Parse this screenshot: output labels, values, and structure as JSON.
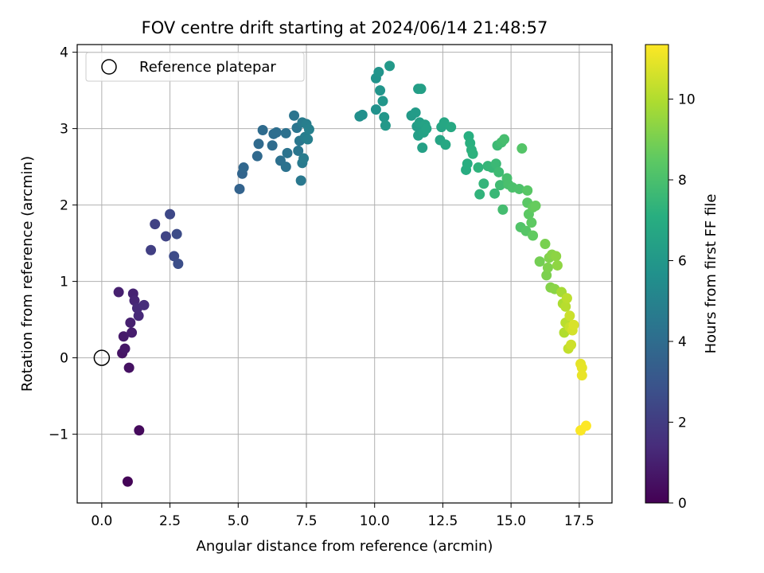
{
  "chart_data": {
    "type": "scatter",
    "title": "FOV centre drift starting at 2024/06/14 21:48:57",
    "xlabel": "Angular distance from reference (arcmin)",
    "ylabel": "Rotation from reference (arcmin)",
    "xlim": [
      -0.9,
      18.7
    ],
    "ylim": [
      -1.9,
      4.1
    ],
    "xticks": [
      0.0,
      2.5,
      5.0,
      7.5,
      10.0,
      12.5,
      15.0,
      17.5
    ],
    "xtick_labels": [
      "0.0",
      "2.5",
      "5.0",
      "7.5",
      "10.0",
      "12.5",
      "15.0",
      "17.5"
    ],
    "yticks": [
      -1,
      0,
      1,
      2,
      3,
      4
    ],
    "ytick_labels": [
      "−1",
      "0",
      "1",
      "2",
      "3",
      "4"
    ],
    "grid": true,
    "legend": {
      "placement": "upper-left",
      "entries": [
        "Reference platepar"
      ]
    },
    "reference_point": {
      "x": 0.0,
      "y": 0.0
    },
    "colorbar": {
      "label": "Hours from first FF file",
      "range": [
        0,
        11.35
      ],
      "ticks": [
        0,
        2,
        4,
        6,
        8,
        10
      ],
      "tick_labels": [
        "0",
        "2",
        "4",
        "6",
        "8",
        "10"
      ],
      "colormap": "viridis"
    },
    "series": [
      {
        "points": [
          [
            0.95,
            -1.62,
            0.1
          ],
          [
            1.37,
            -0.95,
            0.3
          ],
          [
            1.0,
            -0.13,
            0.5
          ],
          [
            0.75,
            0.06,
            0.6
          ],
          [
            0.85,
            0.12,
            0.7
          ],
          [
            0.8,
            0.28,
            0.8
          ],
          [
            1.1,
            0.33,
            0.9
          ],
          [
            1.05,
            0.46,
            1.0
          ],
          [
            0.62,
            0.86,
            1.0
          ],
          [
            1.15,
            0.84,
            1.1
          ],
          [
            1.2,
            0.75,
            1.2
          ],
          [
            1.35,
            0.55,
            1.3
          ],
          [
            1.3,
            0.65,
            1.35
          ],
          [
            1.55,
            0.69,
            1.45
          ],
          [
            1.8,
            1.41,
            2.1
          ],
          [
            1.95,
            1.75,
            2.2
          ],
          [
            2.35,
            1.59,
            2.3
          ],
          [
            2.5,
            1.88,
            2.45
          ],
          [
            2.65,
            1.33,
            2.55
          ],
          [
            2.75,
            1.62,
            2.6
          ],
          [
            2.8,
            1.23,
            2.7
          ],
          [
            5.05,
            2.21,
            3.6
          ],
          [
            5.15,
            2.41,
            3.7
          ],
          [
            5.2,
            2.49,
            3.75
          ],
          [
            5.7,
            2.64,
            3.85
          ],
          [
            5.75,
            2.8,
            3.9
          ],
          [
            5.9,
            2.98,
            3.95
          ],
          [
            6.25,
            2.78,
            4.0
          ],
          [
            6.3,
            2.93,
            4.05
          ],
          [
            6.4,
            2.95,
            4.1
          ],
          [
            6.55,
            2.58,
            4.15
          ],
          [
            6.75,
            2.94,
            4.2
          ],
          [
            6.75,
            2.5,
            4.25
          ],
          [
            6.8,
            2.68,
            4.3
          ],
          [
            7.05,
            3.17,
            4.35
          ],
          [
            7.15,
            3.01,
            4.4
          ],
          [
            7.2,
            2.71,
            4.45
          ],
          [
            7.25,
            2.84,
            4.5
          ],
          [
            7.3,
            2.32,
            4.55
          ],
          [
            7.35,
            2.55,
            4.6
          ],
          [
            7.35,
            3.08,
            4.65
          ],
          [
            7.4,
            2.61,
            4.7
          ],
          [
            7.45,
            2.89,
            4.75
          ],
          [
            7.5,
            3.06,
            4.8
          ],
          [
            7.55,
            2.86,
            4.85
          ],
          [
            7.6,
            2.99,
            4.9
          ],
          [
            9.45,
            3.16,
            5.6
          ],
          [
            9.55,
            3.18,
            5.65
          ],
          [
            10.05,
            3.25,
            5.7
          ],
          [
            10.05,
            3.66,
            5.75
          ],
          [
            10.15,
            3.74,
            5.8
          ],
          [
            10.2,
            3.5,
            5.85
          ],
          [
            10.3,
            3.36,
            5.9
          ],
          [
            10.35,
            3.15,
            5.95
          ],
          [
            10.4,
            3.04,
            6.0
          ],
          [
            10.55,
            3.82,
            6.05
          ],
          [
            11.35,
            3.17,
            6.1
          ],
          [
            11.5,
            3.21,
            6.15
          ],
          [
            11.55,
            3.03,
            6.2
          ],
          [
            11.6,
            3.52,
            6.25
          ],
          [
            11.6,
            2.91,
            6.3
          ],
          [
            11.65,
            3.08,
            6.35
          ],
          [
            11.7,
            3.52,
            6.35
          ],
          [
            11.75,
            2.75,
            6.4
          ],
          [
            11.8,
            2.95,
            6.45
          ],
          [
            11.85,
            3.05,
            6.5
          ],
          [
            11.9,
            3.0,
            6.55
          ],
          [
            12.4,
            2.85,
            6.6
          ],
          [
            12.45,
            3.02,
            6.65
          ],
          [
            12.55,
            3.08,
            6.7
          ],
          [
            12.6,
            2.79,
            6.75
          ],
          [
            12.8,
            3.02,
            6.8
          ],
          [
            13.35,
            2.46,
            7.0
          ],
          [
            13.4,
            2.54,
            7.05
          ],
          [
            13.45,
            2.9,
            7.1
          ],
          [
            13.5,
            2.81,
            7.15
          ],
          [
            13.55,
            2.72,
            7.2
          ],
          [
            13.6,
            2.67,
            7.25
          ],
          [
            13.8,
            2.49,
            7.3
          ],
          [
            13.85,
            2.14,
            7.35
          ],
          [
            14.0,
            2.28,
            7.4
          ],
          [
            14.15,
            2.51,
            7.45
          ],
          [
            14.3,
            2.49,
            7.5
          ],
          [
            14.4,
            2.15,
            7.55
          ],
          [
            14.45,
            2.54,
            7.6
          ],
          [
            14.5,
            2.78,
            7.65
          ],
          [
            14.55,
            2.43,
            7.7
          ],
          [
            14.6,
            2.26,
            7.75
          ],
          [
            14.65,
            2.82,
            7.8
          ],
          [
            14.7,
            1.94,
            7.85
          ],
          [
            14.75,
            2.86,
            7.9
          ],
          [
            14.85,
            2.35,
            7.95
          ],
          [
            14.9,
            2.27,
            8.0
          ],
          [
            15.05,
            2.23,
            8.05
          ],
          [
            15.3,
            2.21,
            8.1
          ],
          [
            15.35,
            1.71,
            8.2
          ],
          [
            15.4,
            2.74,
            8.25
          ],
          [
            15.55,
            1.66,
            8.3
          ],
          [
            15.6,
            2.19,
            8.35
          ],
          [
            15.6,
            2.03,
            8.4
          ],
          [
            15.65,
            1.88,
            8.45
          ],
          [
            15.75,
            1.77,
            8.5
          ],
          [
            15.8,
            1.6,
            8.55
          ],
          [
            15.8,
            1.97,
            8.6
          ],
          [
            15.9,
            1.99,
            8.65
          ],
          [
            16.05,
            1.26,
            8.9
          ],
          [
            16.25,
            1.49,
            9.0
          ],
          [
            16.3,
            1.08,
            9.05
          ],
          [
            16.35,
            1.18,
            9.1
          ],
          [
            16.4,
            1.31,
            9.15
          ],
          [
            16.45,
            0.92,
            9.2
          ],
          [
            16.5,
            1.35,
            9.25
          ],
          [
            16.6,
            0.9,
            9.3
          ],
          [
            16.65,
            1.33,
            9.35
          ],
          [
            16.7,
            1.21,
            9.4
          ],
          [
            16.85,
            0.86,
            9.8
          ],
          [
            16.9,
            0.71,
            9.9
          ],
          [
            16.95,
            0.33,
            10.0
          ],
          [
            17.0,
            0.67,
            10.1
          ],
          [
            17.0,
            0.46,
            10.15
          ],
          [
            17.05,
            0.78,
            10.2
          ],
          [
            17.1,
            0.12,
            10.3
          ],
          [
            17.15,
            0.4,
            10.4
          ],
          [
            17.15,
            0.55,
            10.45
          ],
          [
            17.2,
            0.17,
            10.5
          ],
          [
            17.25,
            0.36,
            10.6
          ],
          [
            17.3,
            0.43,
            10.7
          ],
          [
            17.55,
            -0.08,
            10.9
          ],
          [
            17.6,
            -0.13,
            10.95
          ],
          [
            17.6,
            -0.23,
            11.0
          ],
          [
            17.55,
            -0.95,
            11.3
          ],
          [
            17.75,
            -0.89,
            11.35
          ]
        ]
      }
    ]
  }
}
